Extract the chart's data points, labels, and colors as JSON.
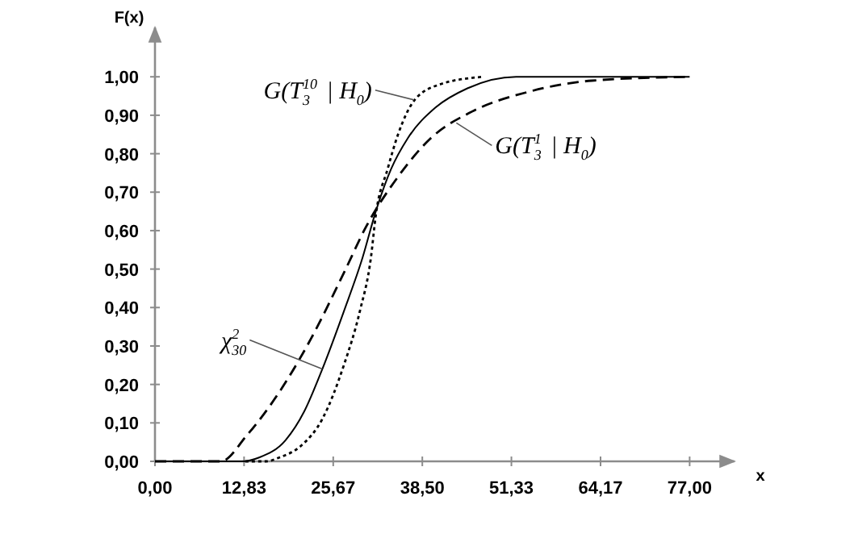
{
  "chart_data": {
    "type": "line",
    "xlabel": "x",
    "ylabel": "F(x)",
    "xlim": [
      0,
      83
    ],
    "ylim": [
      0,
      1.12
    ],
    "xticks": [
      {
        "value": 0,
        "label": "0,00"
      },
      {
        "value": 12.83,
        "label": "12,83"
      },
      {
        "value": 25.67,
        "label": "25,67"
      },
      {
        "value": 38.5,
        "label": "38,50"
      },
      {
        "value": 51.33,
        "label": "51,33"
      },
      {
        "value": 64.17,
        "label": "64,17"
      },
      {
        "value": 77,
        "label": "77,00"
      }
    ],
    "yticks": [
      {
        "value": 0,
        "label": "0,00"
      },
      {
        "value": 0.1,
        "label": "0,10"
      },
      {
        "value": 0.2,
        "label": "0,20"
      },
      {
        "value": 0.3,
        "label": "0,30"
      },
      {
        "value": 0.4,
        "label": "0,40"
      },
      {
        "value": 0.5,
        "label": "0,50"
      },
      {
        "value": 0.6,
        "label": "0,60"
      },
      {
        "value": 0.7,
        "label": "0,70"
      },
      {
        "value": 0.8,
        "label": "0,80"
      },
      {
        "value": 0.9,
        "label": "0,90"
      },
      {
        "value": 1,
        "label": "1,00"
      }
    ],
    "grid": false,
    "series": [
      {
        "color": "#000000",
        "line_style": "solid",
        "x": [
          0,
          12.5,
          15,
          18.8,
          21.5,
          24.1,
          27.2,
          29.9,
          31.8,
          34,
          36.4,
          40.4,
          45,
          52,
          77
        ],
        "values": [
          0,
          0,
          0.01,
          0.055,
          0.13,
          0.24,
          0.39,
          0.53,
          0.65,
          0.76,
          0.84,
          0.92,
          0.97,
          1,
          1
        ]
      },
      {
        "color": "#000000",
        "line_style": "dotted",
        "x": [
          13,
          16,
          17.9,
          21,
          24.1,
          27.2,
          29.5,
          31.1,
          31.8,
          33.5,
          35,
          37.4,
          41,
          47.3
        ],
        "values": [
          0,
          0,
          0.01,
          0.04,
          0.11,
          0.25,
          0.39,
          0.53,
          0.64,
          0.76,
          0.85,
          0.94,
          0.98,
          1
        ]
      },
      {
        "color": "#000000",
        "line_style": "dashed",
        "x": [
          0,
          9.5,
          13.2,
          17.9,
          22.5,
          27.2,
          30.4,
          35,
          39.7,
          45.7,
          53.6,
          62.9,
          76.8
        ],
        "values": [
          0,
          0,
          0.067,
          0.18,
          0.32,
          0.49,
          0.61,
          0.74,
          0.84,
          0.91,
          0.96,
          0.99,
          1
        ]
      }
    ],
    "annotations": [
      {
        "text": "G(T$^{10}$$_{3}$ | H$_{0}$)",
        "x": 37.3,
        "y": 0.94
      },
      {
        "text": "G(T$^{1}$$_{3}$ | H$_{0}$)",
        "x": 43.4,
        "y": 0.88
      },
      {
        "text": "χ$^{2}$$_{30}$",
        "x": 24.1,
        "y": 0.24
      }
    ]
  }
}
